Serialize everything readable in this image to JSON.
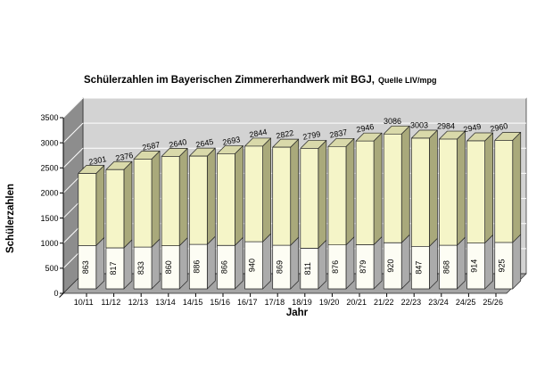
{
  "chart_data": {
    "type": "bar",
    "subtype": "3d-stacked-column",
    "title_main": "Schülerzahlen im Bayerischen Zimmererhandwerk mit BGJ,",
    "title_suffix": "Quelle LIV/mpg",
    "xlabel": "Jahr",
    "ylabel": "Schülerzahlen",
    "ylim": [
      0,
      3500
    ],
    "yticks": [
      0,
      500,
      1000,
      1500,
      2000,
      2500,
      3000,
      3500
    ],
    "categories": [
      "10/11",
      "11/12",
      "12/13",
      "13/14",
      "14/15",
      "15/16",
      "16/17",
      "17/18",
      "18/19",
      "19/20",
      "20/21",
      "21/22",
      "22/23",
      "23/24",
      "24/25",
      "25/26"
    ],
    "series": [
      {
        "role": "bottom-segment",
        "label_position": "inside-vertical",
        "values": [
          863,
          817,
          833,
          860,
          886,
          866,
          940,
          869,
          811,
          876,
          879,
          920,
          847,
          868,
          914,
          925
        ]
      },
      {
        "role": "stack-total",
        "label_position": "above",
        "values": [
          2301,
          2376,
          2587,
          2640,
          2645,
          2693,
          2844,
          2822,
          2799,
          2837,
          2946,
          3086,
          3003,
          2984,
          2949,
          2960
        ]
      }
    ],
    "horizontal_total_label_indices": [
      11,
      12,
      13
    ],
    "grid": "horizontal-500",
    "legend": "none",
    "colors": {
      "bar_bottom_front": "#fdfdf4",
      "bar_bottom_side": "#ababab",
      "bar_top_front": "#f5f5c8",
      "bar_top_side": "#a9a97b",
      "bar_top_top": "#d9d9aa",
      "wall_back": "#d3d3d3",
      "wall_left": "#8d8d8d",
      "floor": "#a5a5a5",
      "gridline": "#ffffff",
      "outline": "#262626",
      "text": "#000000",
      "background": "#ffffff"
    }
  }
}
